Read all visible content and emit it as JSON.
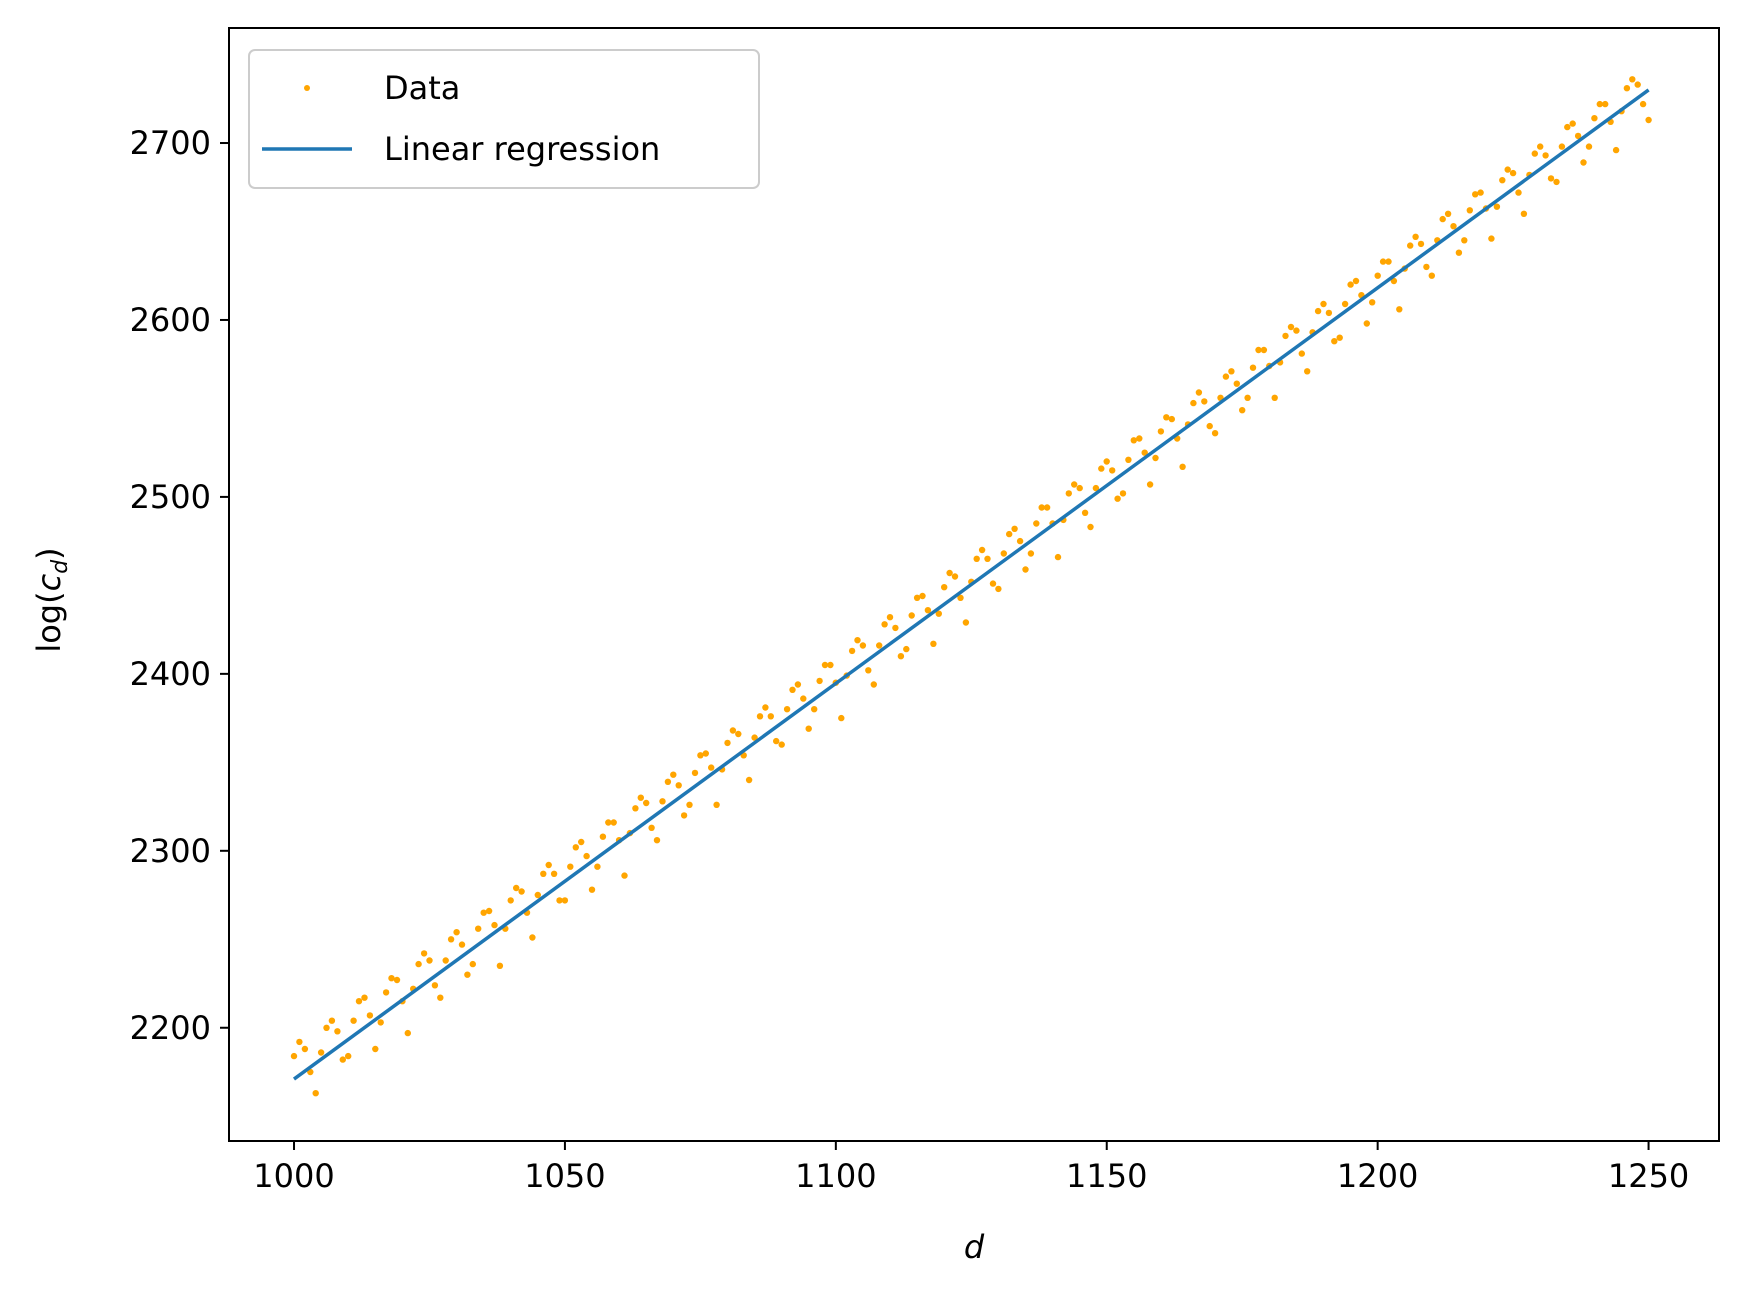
{
  "chart_data": {
    "type": "scatter",
    "xlabel": "d",
    "ylabel": "log(c_d)",
    "ylabel_parts": {
      "prefix": "log(",
      "var": "c",
      "sub": "d",
      "suffix": ")"
    },
    "xlim": [
      988,
      1263
    ],
    "ylim": [
      2136,
      2765
    ],
    "xticks": [
      1000,
      1050,
      1100,
      1150,
      1200,
      1250
    ],
    "yticks": [
      2200,
      2300,
      2400,
      2500,
      2600,
      2700
    ],
    "grid": false,
    "legend_position": "top-left",
    "legend": [
      "Data",
      "Linear regression"
    ],
    "colors": {
      "data": "#ffa500",
      "regression": "#1f77b4",
      "axes": "#000000",
      "legend_border": "#cccccc"
    },
    "series": [
      {
        "name": "Data",
        "kind": "scatter",
        "x_start": 1000,
        "x_step": 1,
        "y_values": [
          2184,
          2192,
          2188,
          2175,
          2163,
          2186,
          2200,
          2204,
          2198,
          2182,
          2184,
          2204,
          2215,
          2217,
          2207,
          2188,
          2203,
          2220,
          2228,
          2227,
          2215,
          2197,
          2222,
          2236,
          2242,
          2238,
          2224,
          2217,
          2238,
          2250,
          2254,
          2247,
          2230,
          2236,
          2256,
          2265,
          2266,
          2258,
          2235,
          2256,
          2272,
          2279,
          2277,
          2265,
          2251,
          2275,
          2287,
          2292,
          2287,
          2272,
          2272,
          2291,
          2302,
          2305,
          2297,
          2278,
          2291,
          2308,
          2316,
          2316,
          2306,
          2286,
          2310,
          2324,
          2330,
          2327,
          2313,
          2306,
          2328,
          2339,
          2343,
          2337,
          2320,
          2326,
          2344,
          2354,
          2355,
          2347,
          2326,
          2346,
          2361,
          2368,
          2366,
          2354,
          2340,
          2364,
          2376,
          2381,
          2376,
          2362,
          2360,
          2380,
          2391,
          2394,
          2386,
          2369,
          2380,
          2396,
          2405,
          2405,
          2395,
          2375,
          2399,
          2413,
          2419,
          2416,
          2402,
          2394,
          2416,
          2428,
          2432,
          2426,
          2410,
          2414,
          2433,
          2443,
          2444,
          2436,
          2417,
          2434,
          2449,
          2457,
          2455,
          2443,
          2429,
          2452,
          2465,
          2470,
          2465,
          2451,
          2448,
          2468,
          2479,
          2482,
          2475,
          2459,
          2468,
          2485,
          2494,
          2494,
          2485,
          2466,
          2487,
          2502,
          2507,
          2505,
          2491,
          2483,
          2505,
          2516,
          2520,
          2515,
          2499,
          2502,
          2521,
          2532,
          2533,
          2525,
          2507,
          2522,
          2537,
          2545,
          2544,
          2533,
          2517,
          2541,
          2553,
          2559,
          2554,
          2540,
          2536,
          2556,
          2568,
          2571,
          2564,
          2549,
          2556,
          2573,
          2583,
          2583,
          2574,
          2556,
          2576,
          2591,
          2596,
          2594,
          2581,
          2571,
          2593,
          2605,
          2609,
          2604,
          2588,
          2590,
          2609,
          2620,
          2622,
          2614,
          2598,
          2610,
          2625,
          2633,
          2633,
          2622,
          2606,
          2629,
          2642,
          2647,
          2643,
          2630,
          2625,
          2645,
          2657,
          2660,
          2653,
          2638,
          2645,
          2662,
          2671,
          2672,
          2663,
          2646,
          2664,
          2679,
          2685,
          2683,
          2672,
          2660,
          2682,
          2694,
          2698,
          2693,
          2680,
          2678,
          2698,
          2709,
          2711,
          2704,
          2689,
          2698,
          2714,
          2722,
          2722,
          2712,
          2696,
          2718,
          2731,
          2736,
          2733,
          2722,
          2713
        ]
      },
      {
        "name": "Linear regression",
        "kind": "line",
        "points": [
          [
            1000,
            2171
          ],
          [
            1250,
            2730
          ]
        ]
      }
    ]
  }
}
